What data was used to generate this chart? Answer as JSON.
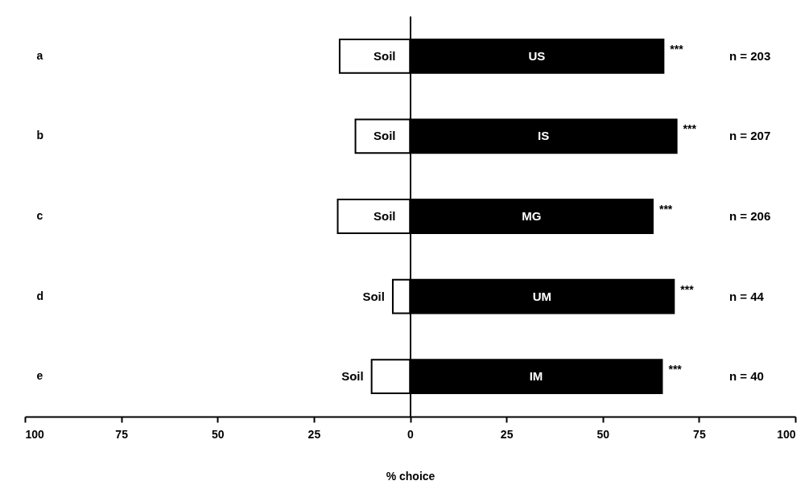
{
  "chart_data": {
    "type": "bar",
    "orientation": "horizontal",
    "stacked": true,
    "xlabel": "% choice",
    "categories": [
      "a",
      "b",
      "c",
      "d",
      "e"
    ],
    "xlim": [
      -100,
      100
    ],
    "xticks": [
      {
        "value": -100,
        "label": "100"
      },
      {
        "value": -75,
        "label": "75"
      },
      {
        "value": -50,
        "label": "50"
      },
      {
        "value": -25,
        "label": "25"
      },
      0,
      25,
      50,
      75,
      100
    ],
    "series": [
      {
        "name": "Soil",
        "color": "#ffffff",
        "values": [
          -18.3,
          -14.2,
          -18.8,
          -4.5,
          -10.0
        ]
      },
      {
        "color": "#000000",
        "values": [
          65.8,
          69.2,
          63.0,
          68.5,
          65.4
        ],
        "value_labels": [
          "US",
          "IS",
          "MG",
          "UM",
          "IM"
        ]
      }
    ],
    "annotations": [
      "***",
      "***",
      "***",
      "***",
      "***",
      "n = 203",
      "n = 207",
      "n = 206",
      "n = 44",
      "n = 40"
    ]
  }
}
